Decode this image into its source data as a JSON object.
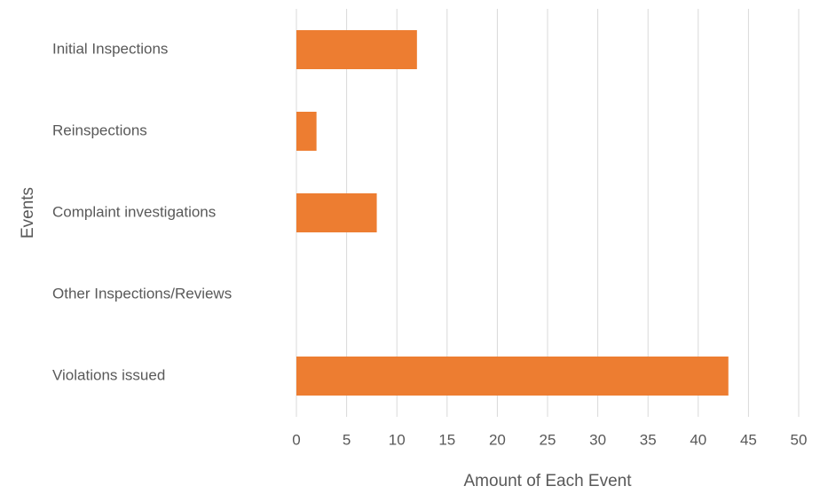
{
  "chart_data": {
    "type": "bar",
    "orientation": "horizontal",
    "x_label": "Amount of Each Event",
    "y_label": "Events",
    "categories": [
      "Initial Inspections",
      "Reinspections",
      "Complaint investigations",
      "Other Inspections/Reviews",
      "Violations issued"
    ],
    "values": [
      12,
      2,
      8,
      0,
      43
    ],
    "color": "#ed7d31",
    "xlim": [
      0,
      50
    ],
    "xticks": [
      0,
      5,
      10,
      15,
      20,
      25,
      30,
      35,
      40,
      45,
      50
    ],
    "grid": true
  }
}
